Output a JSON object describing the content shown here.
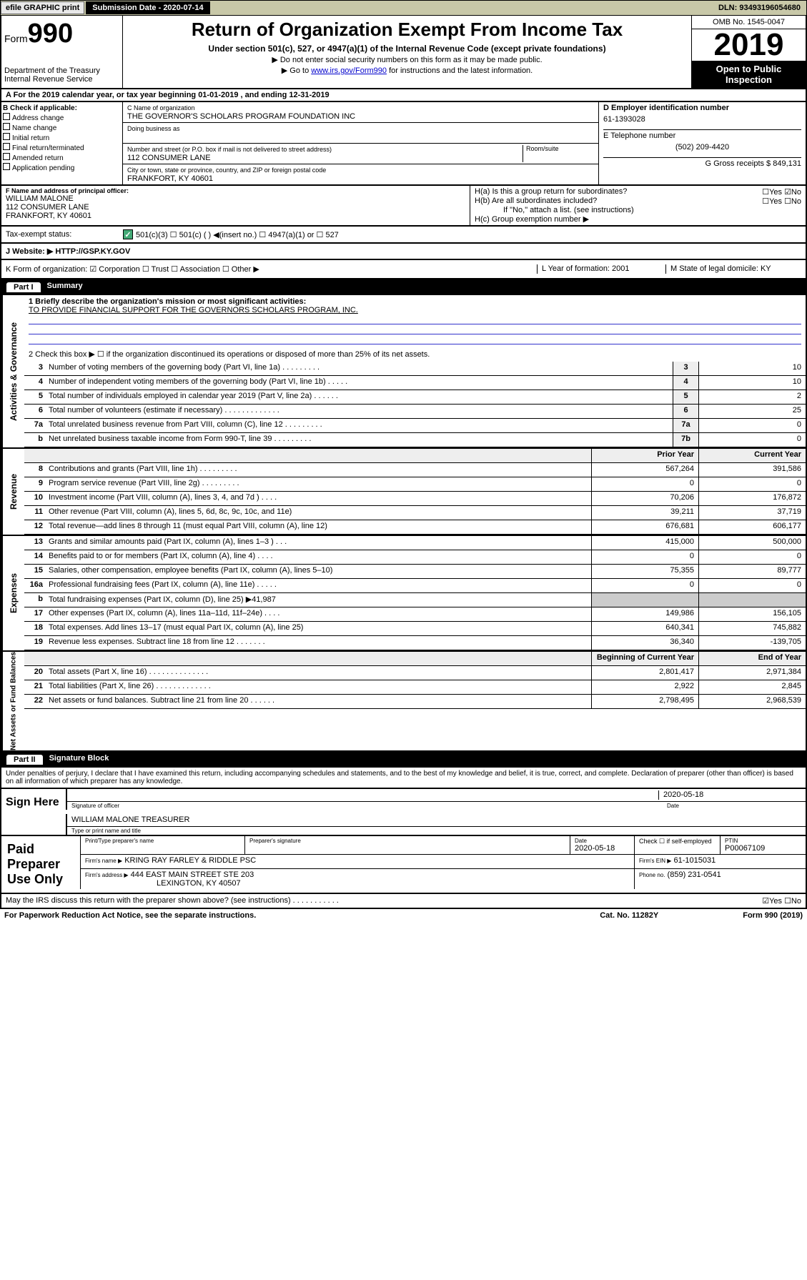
{
  "topbar": {
    "efile": "efile GRAPHIC print",
    "sub_label": "Submission Date - 2020-07-14",
    "dln": "DLN: 93493196054680"
  },
  "header": {
    "form_prefix": "Form",
    "form_num": "990",
    "title": "Return of Organization Exempt From Income Tax",
    "subtitle": "Under section 501(c), 527, or 4947(a)(1) of the Internal Revenue Code (except private foundations)",
    "note1": "▶ Do not enter social security numbers on this form as it may be made public.",
    "note2a": "▶ Go to ",
    "note2_link": "www.irs.gov/Form990",
    "note2b": " for instructions and the latest information.",
    "dept": "Department of the Treasury\nInternal Revenue Service",
    "omb": "OMB No. 1545-0047",
    "year": "2019",
    "open": "Open to Public Inspection"
  },
  "sectionA": {
    "taxyear": "A For the 2019 calendar year, or tax year beginning 01-01-2019    , and ending 12-31-2019",
    "B_label": "B Check if applicable:",
    "B_items": [
      "Address change",
      "Name change",
      "Initial return",
      "Final return/terminated",
      "Amended return",
      "Application pending"
    ],
    "C_name_label": "C Name of organization",
    "C_name": "THE GOVERNOR'S SCHOLARS PROGRAM FOUNDATION INC",
    "dba_label": "Doing business as",
    "addr_label": "Number and street (or P.O. box if mail is not delivered to street address)",
    "addr": "112 CONSUMER LANE",
    "room_label": "Room/suite",
    "city_label": "City or town, state or province, country, and ZIP or foreign postal code",
    "city": "FRANKFORT, KY  40601",
    "D_label": "D Employer identification number",
    "D_val": "61-1393028",
    "E_label": "E Telephone number",
    "E_val": "(502) 209-4420",
    "G_label": "G Gross receipts $ 849,131"
  },
  "principal": {
    "F_label": "F  Name and address of principal officer:",
    "F_name": "WILLIAM MALONE",
    "F_addr1": "112 CONSUMER LANE",
    "F_addr2": "FRANKFORT, KY  40601",
    "Ha": "H(a)  Is this a group return for subordinates?",
    "Ha_ans": "☐Yes ☑No",
    "Hb": "H(b)  Are all subordinates included?",
    "Hb_ans": "☐Yes ☐No",
    "Hb_note": "If \"No,\" attach a list. (see instructions)",
    "Hc": "H(c)  Group exemption number ▶"
  },
  "taxexempt": {
    "label": "Tax-exempt status:",
    "opts": "501(c)(3)    ☐  501(c) (  ) ◀(insert no.)    ☐ 4947(a)(1) or  ☐ 527"
  },
  "website": {
    "label": "J   Website: ▶",
    "val": "HTTP://GSP.KY.GOV"
  },
  "kform": {
    "K": "K Form of organization:  ☑ Corporation ☐ Trust ☐ Association ☐ Other ▶",
    "L": "L Year of formation: 2001",
    "M": "M State of legal domicile: KY"
  },
  "partI": {
    "tab": "Part I",
    "title": "Summary",
    "q1_label": "1   Briefly describe the organization's mission or most significant activities:",
    "q1_text": "TO PROVIDE FINANCIAL SUPPORT FOR THE GOVERNORS SCHOLARS PROGRAM, INC.",
    "q2": "2   Check this box ▶ ☐  if the organization discontinued its operations or disposed of more than 25% of its net assets.",
    "lines_gov": [
      {
        "n": "3",
        "t": "Number of voting members of the governing body (Part VI, line 1a)  .    .    .    .    .    .    .    .    .",
        "b": "3",
        "v": "10"
      },
      {
        "n": "4",
        "t": "Number of independent voting members of the governing body (Part VI, line 1b)  .    .    .    .    .",
        "b": "4",
        "v": "10"
      },
      {
        "n": "5",
        "t": "Total number of individuals employed in calendar year 2019 (Part V, line 2a)  .    .    .    .    .    .",
        "b": "5",
        "v": "2"
      },
      {
        "n": "6",
        "t": "Total number of volunteers (estimate if necessary)  .    .    .    .    .    .    .    .    .    .    .    .    .",
        "b": "6",
        "v": "25"
      },
      {
        "n": "7a",
        "t": "Total unrelated business revenue from Part VIII, column (C), line 12  .    .    .    .    .    .    .    .    .",
        "b": "7a",
        "v": "0"
      },
      {
        "n": "b",
        "t": "Net unrelated business taxable income from Form 990-T, line 39    .    .    .    .    .    .    .    .    .",
        "b": "7b",
        "v": "0"
      }
    ],
    "hdr_prior": "Prior Year",
    "hdr_curr": "Current Year",
    "lines_rev": [
      {
        "n": "8",
        "t": "Contributions and grants (Part VIII, line 1h)   .    .    .    .    .    .    .    .    .",
        "p": "567,264",
        "c": "391,586"
      },
      {
        "n": "9",
        "t": "Program service revenue (Part VIII, line 2g)   .    .    .    .    .    .    .    .    .",
        "p": "0",
        "c": "0"
      },
      {
        "n": "10",
        "t": "Investment income (Part VIII, column (A), lines 3, 4, and 7d )    .    .    .    .",
        "p": "70,206",
        "c": "176,872"
      },
      {
        "n": "11",
        "t": "Other revenue (Part VIII, column (A), lines 5, 6d, 8c, 9c, 10c, and 11e)",
        "p": "39,211",
        "c": "37,719"
      },
      {
        "n": "12",
        "t": "Total revenue—add lines 8 through 11 (must equal Part VIII, column (A), line 12)",
        "p": "676,681",
        "c": "606,177"
      }
    ],
    "lines_exp": [
      {
        "n": "13",
        "t": "Grants and similar amounts paid (Part IX, column (A), lines 1–3 )   .    .    .",
        "p": "415,000",
        "c": "500,000"
      },
      {
        "n": "14",
        "t": "Benefits paid to or for members (Part IX, column (A), line 4)  .    .    .    .",
        "p": "0",
        "c": "0"
      },
      {
        "n": "15",
        "t": "Salaries, other compensation, employee benefits (Part IX, column (A), lines 5–10)",
        "p": "75,355",
        "c": "89,777"
      },
      {
        "n": "16a",
        "t": "Professional fundraising fees (Part IX, column (A), line 11e)   .    .    .    .    .",
        "p": "0",
        "c": "0"
      },
      {
        "n": "b",
        "t": "Total fundraising expenses (Part IX, column (D), line 25) ▶41,987",
        "p": "",
        "c": ""
      },
      {
        "n": "17",
        "t": "Other expenses (Part IX, column (A), lines 11a–11d, 11f–24e)   .    .    .    .",
        "p": "149,986",
        "c": "156,105"
      },
      {
        "n": "18",
        "t": "Total expenses. Add lines 13–17 (must equal Part IX, column (A), line 25)",
        "p": "640,341",
        "c": "745,882"
      },
      {
        "n": "19",
        "t": "Revenue less expenses. Subtract line 18 from line 12  .    .    .    .    .    .    .",
        "p": "36,340",
        "c": "-139,705"
      }
    ],
    "hdr_begin": "Beginning of Current Year",
    "hdr_end": "End of Year",
    "lines_net": [
      {
        "n": "20",
        "t": "Total assets (Part X, line 16)  .    .    .    .    .    .    .    .    .    .    .    .    .    .",
        "p": "2,801,417",
        "c": "2,971,384"
      },
      {
        "n": "21",
        "t": "Total liabilities (Part X, line 26)   .    .    .    .    .    .    .    .    .    .    .    .    .",
        "p": "2,922",
        "c": "2,845"
      },
      {
        "n": "22",
        "t": "Net assets or fund balances. Subtract line 21 from line 20  .    .    .    .    .    .",
        "p": "2,798,495",
        "c": "2,968,539"
      }
    ],
    "side_gov": "Activities & Governance",
    "side_rev": "Revenue",
    "side_exp": "Expenses",
    "side_net": "Net Assets or Fund Balances"
  },
  "partII": {
    "tab": "Part II",
    "title": "Signature Block",
    "perjury": "Under penalties of perjury, I declare that I have examined this return, including accompanying schedules and statements, and to the best of my knowledge and belief, it is true, correct, and complete. Declaration of preparer (other than officer) is based on all information of which preparer has any knowledge.",
    "sign_here": "Sign Here",
    "sig_of_officer": "Signature of officer",
    "sig_date": "2020-05-18",
    "date_label": "Date",
    "officer_name": "WILLIAM MALONE  TREASURER",
    "type_label": "Type or print name and title",
    "paid_label": "Paid Preparer Use Only",
    "prep_name_label": "Print/Type preparer's name",
    "prep_sig_label": "Preparer's signature",
    "prep_date_label": "Date",
    "prep_date": "2020-05-18",
    "check_label": "Check ☐ if self-employed",
    "ptin_label": "PTIN",
    "ptin": "P00067109",
    "firm_name_label": "Firm's name     ▶",
    "firm_name": "KRING RAY FARLEY & RIDDLE PSC",
    "firm_ein_label": "Firm's EIN ▶",
    "firm_ein": "61-1015031",
    "firm_addr_label": "Firm's address ▶",
    "firm_addr1": "444 EAST MAIN STREET STE 203",
    "firm_addr2": "LEXINGTON, KY  40507",
    "phone_label": "Phone no.",
    "phone": "(859) 231-0541",
    "discuss": "May the IRS discuss this return with the preparer shown above? (see instructions)     .    .    .    .    .    .    .    .    .    .    .",
    "discuss_ans": "☑Yes  ☐No"
  },
  "footer": {
    "pra": "For Paperwork Reduction Act Notice, see the separate instructions.",
    "cat": "Cat. No. 11282Y",
    "form": "Form 990 (2019)"
  }
}
